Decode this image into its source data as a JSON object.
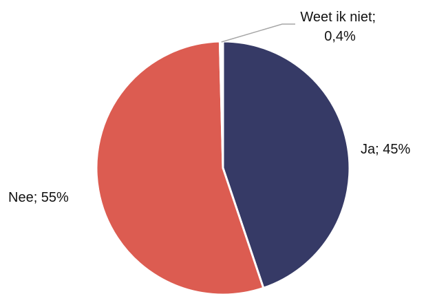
{
  "chart_data": {
    "type": "pie",
    "slices": [
      {
        "label_lines": [
          "Ja; 45%"
        ],
        "value": 45,
        "color": "#363a66"
      },
      {
        "label_lines": [
          "Nee; 55%"
        ],
        "value": 55,
        "color": "#dc5c51"
      },
      {
        "label_lines": [
          "Weet ik niet;",
          "0,4%"
        ],
        "value": 0.4,
        "color": "#ffffff"
      }
    ],
    "start": "top",
    "direction": "clockwise",
    "legend": "none",
    "grid": false
  }
}
